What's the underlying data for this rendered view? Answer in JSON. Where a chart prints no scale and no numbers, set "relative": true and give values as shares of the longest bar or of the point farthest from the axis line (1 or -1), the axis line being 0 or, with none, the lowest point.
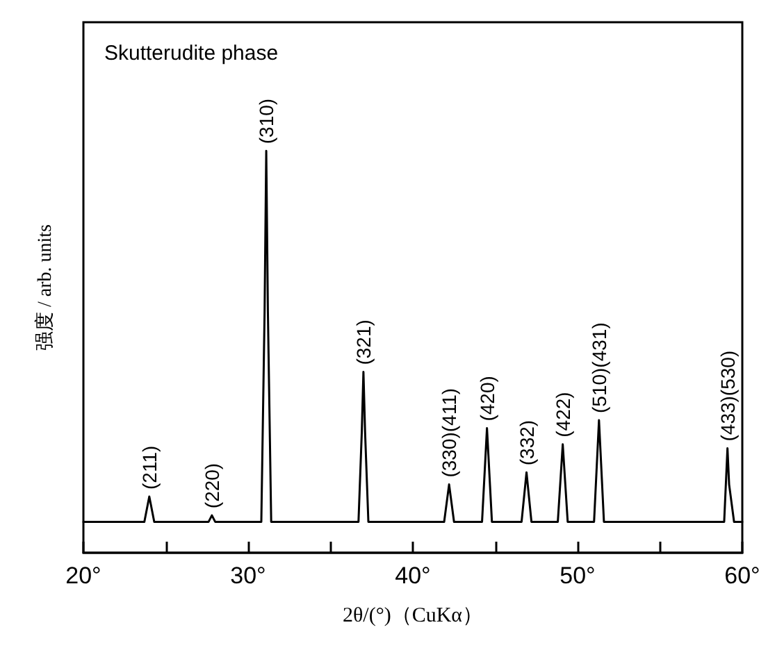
{
  "chart_data": {
    "type": "line",
    "title": "Skutterudite phase",
    "xlabel": "2θ/(°)（CuKα）",
    "ylabel": "强度 / arb. units",
    "relative": true,
    "color": "#000000",
    "x": [
      20,
      23.7,
      24.0,
      24.3,
      27.6,
      27.8,
      28.0,
      30.8,
      31.0,
      31.1,
      31.2,
      31.4,
      36.7,
      36.9,
      37.0,
      37.1,
      37.3,
      41.9,
      42.2,
      42.5,
      44.2,
      44.5,
      44.8,
      46.6,
      46.9,
      47.2,
      48.8,
      49.1,
      49.4,
      51.0,
      51.3,
      51.6,
      58.9,
      59.1,
      59.2,
      59.5,
      60
    ],
    "values": [
      0.077,
      0.077,
      0.14,
      0.077,
      0.077,
      0.093,
      0.077,
      0.077,
      0.6,
      1.0,
      0.6,
      0.077,
      0.077,
      0.3,
      0.45,
      0.3,
      0.077,
      0.077,
      0.17,
      0.077,
      0.077,
      0.31,
      0.077,
      0.077,
      0.2,
      0.077,
      0.077,
      0.27,
      0.077,
      0.077,
      0.33,
      0.077,
      0.077,
      0.26,
      0.17,
      0.077,
      0.077
    ],
    "xlim": [
      20,
      60
    ],
    "xticks": [
      {
        "value": 20,
        "label": "20°"
      },
      {
        "value": 25,
        "label": null
      },
      {
        "value": 30,
        "label": "30°"
      },
      {
        "value": 35,
        "label": null
      },
      {
        "value": 40,
        "label": "40°"
      },
      {
        "value": 45,
        "label": null
      },
      {
        "value": 50,
        "label": "50°"
      },
      {
        "value": 55,
        "label": null
      },
      {
        "value": 60,
        "label": "60°"
      }
    ],
    "annotations": [
      {
        "text": "(211)",
        "x": 24.0,
        "y": 0.14
      },
      {
        "text": "(220)",
        "x": 27.8,
        "y": 0.093
      },
      {
        "text": "(310)",
        "x": 31.1,
        "y": 1.0
      },
      {
        "text": "(321)",
        "x": 37.0,
        "y": 0.45
      },
      {
        "text": "(330)(411)",
        "x": 42.2,
        "y": 0.17
      },
      {
        "text": "(420)",
        "x": 44.5,
        "y": 0.31
      },
      {
        "text": "(332)",
        "x": 46.9,
        "y": 0.2
      },
      {
        "text": "(422)",
        "x": 49.1,
        "y": 0.27
      },
      {
        "text": "(510)(431)",
        "x": 51.3,
        "y": 0.33
      },
      {
        "text": "(433)(530)",
        "x": 59.1,
        "y": 0.26
      }
    ],
    "marker": "none",
    "line_style": "solid"
  }
}
